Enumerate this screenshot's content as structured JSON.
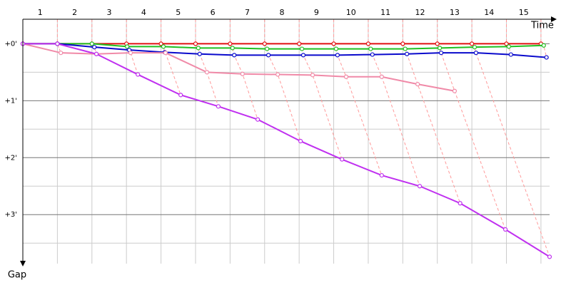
{
  "chart_data": {
    "type": "line",
    "xlabel": "Time",
    "ylabel": "Gap",
    "categories": [
      "1",
      "2",
      "3",
      "4",
      "5",
      "6",
      "7",
      "8",
      "9",
      "10",
      "11",
      "12",
      "13",
      "14",
      "15"
    ],
    "xlim": [
      0,
      15.25
    ],
    "ylim": [
      -0.43,
      3.86
    ],
    "yticks": [
      {
        "value": 0,
        "label": "+0'"
      },
      {
        "value": 1,
        "label": "+1'"
      },
      {
        "value": 2,
        "label": "+2'"
      },
      {
        "value": 3,
        "label": "+3'"
      }
    ],
    "yminor": [
      0.5,
      1.5,
      2.5,
      3.5
    ],
    "grid": true,
    "series": [
      {
        "color": "#e01010",
        "x": [
          0,
          1,
          2,
          3,
          4,
          5,
          6,
          7,
          8,
          9,
          10,
          11,
          12,
          13,
          14,
          15
        ],
        "values": [
          0,
          0,
          0,
          0,
          0,
          0,
          0,
          0,
          0,
          0,
          0,
          0,
          0,
          0,
          0,
          0
        ]
      },
      {
        "color": "#20c020",
        "x": [
          0,
          1,
          2,
          3.02,
          4.07,
          5.08,
          6.07,
          7.07,
          8.08,
          9.07,
          10.07,
          11.07,
          12.07,
          13.08,
          14.07,
          15.08
        ],
        "values": [
          0,
          0,
          0,
          0.05,
          0.05,
          0.075,
          0.075,
          0.09,
          0.09,
          0.09,
          0.09,
          0.09,
          0.075,
          0.06,
          0.05,
          0.03
        ]
      },
      {
        "color": "#0a0acc",
        "x": [
          0,
          1,
          2.07,
          3.08,
          4.11,
          5.12,
          6.12,
          7.11,
          8.12,
          9.11,
          10.12,
          11.12,
          12.11,
          13.12,
          14.13,
          15.16
        ],
        "values": [
          0,
          0,
          0.06,
          0.11,
          0.15,
          0.18,
          0.2,
          0.2,
          0.2,
          0.2,
          0.19,
          0.18,
          0.16,
          0.16,
          0.19,
          0.24
        ]
      },
      {
        "color": "#f08aa8",
        "x": [
          0,
          1.1,
          2.13,
          3.12,
          4.13,
          5.33,
          6.36,
          7.38,
          8.39,
          9.36,
          10.39,
          11.43,
          12.5
        ],
        "values": [
          0,
          0.16,
          0.18,
          0.16,
          0.16,
          0.5,
          0.53,
          0.54,
          0.55,
          0.58,
          0.58,
          0.71,
          0.83
        ]
      },
      {
        "color": "#c030f0",
        "x": [
          0,
          1,
          2.13,
          3.33,
          4.57,
          5.66,
          6.8,
          8.04,
          9.24,
          10.39,
          11.49,
          12.66,
          13.97,
          15.25
        ],
        "values": [
          0,
          0,
          0.18,
          0.54,
          0.9,
          1.1,
          1.33,
          1.71,
          2.03,
          2.31,
          2.5,
          2.8,
          3.26,
          3.74
        ]
      }
    ]
  }
}
